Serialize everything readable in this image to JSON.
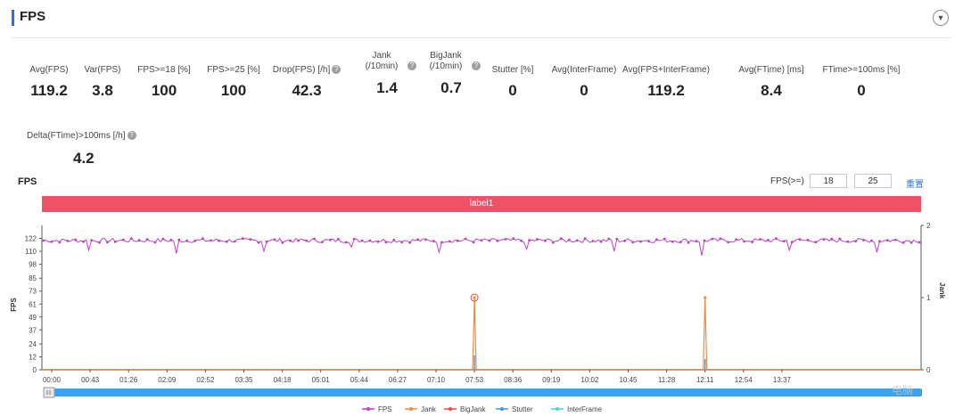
{
  "header": {
    "title": "FPS",
    "collapse_icon": "chevron-down-icon"
  },
  "metrics": [
    {
      "label": "Avg(FPS)",
      "value": "119.2",
      "help": false
    },
    {
      "label": "Var(FPS)",
      "value": "3.8",
      "help": false
    },
    {
      "label": "FPS>=18 [%]",
      "value": "100",
      "help": false
    },
    {
      "label": "FPS>=25 [%]",
      "value": "100",
      "help": false
    },
    {
      "label": "Drop(FPS) [/h]",
      "value": "42.3",
      "help": true
    },
    {
      "label": "Jank (/10min)",
      "value": "1.4",
      "help": true
    },
    {
      "label": "BigJank (/10min)",
      "value": "0.7",
      "help": true
    },
    {
      "label": "Stutter [%]",
      "value": "0",
      "help": false
    },
    {
      "label": "Avg(InterFrame)",
      "value": "0",
      "help": false
    },
    {
      "label": "Avg(FPS+InterFrame)",
      "value": "119.2",
      "help": false
    },
    {
      "label": "Avg(FTime) [ms]",
      "value": "8.4",
      "help": false
    },
    {
      "label": "FTime>=100ms [%]",
      "value": "0",
      "help": false
    },
    {
      "label": "Delta(FTime)>100ms [/h]",
      "value": "4.2",
      "help": true
    }
  ],
  "chart_section": {
    "title": "FPS",
    "filter_label": "FPS(>=)",
    "threshold_1": "18",
    "threshold_2": "25",
    "reset_label": "重置",
    "band_label": "label1"
  },
  "chart_data": {
    "type": "line",
    "ylabel": "FPS",
    "y2label": "Jank",
    "y_ticks": [
      0,
      12,
      24,
      37,
      49,
      61,
      73,
      85,
      98,
      110,
      122
    ],
    "y_max": 134,
    "y2_ticks": [
      0,
      1,
      2
    ],
    "x_ticks": [
      "00:00",
      "00:43",
      "01:26",
      "02:09",
      "02:52",
      "03:35",
      "04:18",
      "05:01",
      "05:44",
      "06:27",
      "07:10",
      "07:53",
      "08:36",
      "09:19",
      "10:02",
      "10:45",
      "11:28",
      "12:11",
      "12:54",
      "13:37"
    ],
    "grid": false,
    "legend_position": "bottom",
    "series": [
      {
        "name": "FPS",
        "color": "#c03ec9",
        "baseline": 120,
        "min_dips": [
          111,
          108,
          110,
          114,
          109,
          112,
          110,
          106,
          111,
          109
        ]
      },
      {
        "name": "Jank",
        "color": "#f08a3c",
        "spikes": [
          {
            "x": "07:53",
            "value": 1
          },
          {
            "x": "12:11",
            "value": 1
          }
        ]
      },
      {
        "name": "BigJank",
        "color": "#e8473c",
        "spikes": []
      },
      {
        "name": "Stutter",
        "color": "#4a8ee6",
        "spikes": [
          {
            "x": "07:53",
            "value": 0.2
          },
          {
            "x": "12:11",
            "value": 0.15
          }
        ]
      },
      {
        "name": "InterFrame",
        "color": "#4ccfd8",
        "spikes": []
      }
    ]
  },
  "watermark": "电脑"
}
